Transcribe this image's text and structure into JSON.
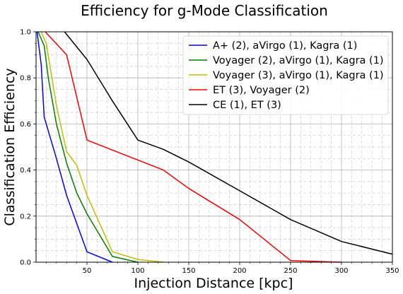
{
  "chart_data": {
    "type": "line",
    "title": "Efficiency for g-Mode Classification",
    "xlabel": "Injection Distance [kpc]",
    "ylabel": "Classification Efficiency",
    "xlim": [
      0,
      350
    ],
    "ylim": [
      0,
      1.0
    ],
    "x_ticks": [
      50,
      100,
      150,
      200,
      250,
      300,
      350
    ],
    "x_tick_labels": [
      "50",
      "100",
      "150",
      "200",
      "250",
      "300",
      "350"
    ],
    "y_ticks": [
      0.0,
      0.2,
      0.4,
      0.6,
      0.8,
      1.0
    ],
    "y_tick_labels": [
      "0.0",
      "0.2",
      "0.4",
      "0.6",
      "0.8",
      "1.0"
    ],
    "grid": true,
    "minor_grid": true,
    "legend_position": "top-right",
    "series": [
      {
        "name": "A+ (2), aVirgo (1), Kagra (1)",
        "color": "#0000ff",
        "points": [
          [
            1,
            1.0
          ],
          [
            5,
            0.86
          ],
          [
            8,
            0.63
          ],
          [
            20,
            0.45
          ],
          [
            30,
            0.29
          ],
          [
            50,
            0.045
          ],
          [
            75,
            0.0
          ]
        ]
      },
      {
        "name": "Voyager (2), aVirgo (1), Kagra (1)",
        "color": "#008000",
        "points": [
          [
            2,
            1.0
          ],
          [
            8,
            0.94
          ],
          [
            12,
            0.8
          ],
          [
            20,
            0.6
          ],
          [
            30,
            0.43
          ],
          [
            40,
            0.3
          ],
          [
            50,
            0.21
          ],
          [
            75,
            0.025
          ],
          [
            100,
            0.0
          ]
        ]
      },
      {
        "name": "Voyager (3), aVirgo (1), Kagra (1)",
        "color": "#bfbf00",
        "points": [
          [
            5,
            1.0
          ],
          [
            10,
            0.95
          ],
          [
            20,
            0.68
          ],
          [
            30,
            0.48
          ],
          [
            40,
            0.42
          ],
          [
            50,
            0.29
          ],
          [
            75,
            0.045
          ],
          [
            100,
            0.012
          ],
          [
            125,
            0.0
          ]
        ]
      },
      {
        "name": "ET (3), Voyager (2)",
        "color": "#ff0000",
        "points": [
          [
            9,
            1.0
          ],
          [
            30,
            0.9
          ],
          [
            50,
            0.53
          ],
          [
            125,
            0.4
          ],
          [
            150,
            0.32
          ],
          [
            200,
            0.185
          ],
          [
            250,
            0.007
          ],
          [
            300,
            0.0
          ]
        ]
      },
      {
        "name": "CE (1), ET (3)",
        "color": "#000000",
        "points": [
          [
            28,
            1.0
          ],
          [
            50,
            0.88
          ],
          [
            75,
            0.7
          ],
          [
            100,
            0.53
          ],
          [
            125,
            0.49
          ],
          [
            150,
            0.435
          ],
          [
            200,
            0.31
          ],
          [
            250,
            0.185
          ],
          [
            300,
            0.09
          ],
          [
            350,
            0.035
          ]
        ]
      }
    ]
  }
}
